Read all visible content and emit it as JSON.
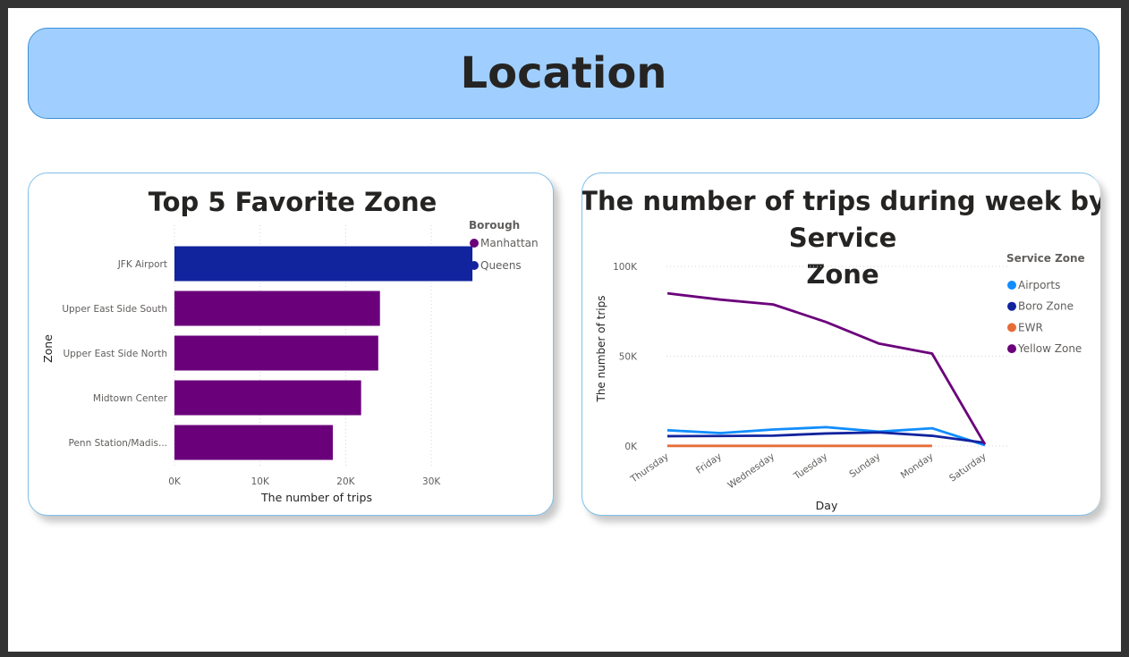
{
  "page": {
    "title": "Location"
  },
  "chart_data": [
    {
      "type": "bar",
      "orientation": "horizontal",
      "title": "Top 5 Favorite Zone",
      "xlabel": "The number of trips",
      "ylabel": "Zone",
      "categories": [
        "JFK Airport",
        "Upper East Side South",
        "Upper East Side North",
        "Midtown Center",
        "Penn Station/Madis..."
      ],
      "values": [
        34800,
        24000,
        23800,
        21800,
        18500
      ],
      "groups": [
        "Queens",
        "Manhattan",
        "Manhattan",
        "Manhattan",
        "Manhattan"
      ],
      "xlim": [
        0,
        35000
      ],
      "xticks": [
        0,
        10000,
        20000,
        30000
      ],
      "xtick_labels": [
        "0K",
        "10K",
        "20K",
        "30K"
      ],
      "grid": true,
      "legend": {
        "title": "Borough",
        "position": "top-right",
        "items": [
          {
            "name": "Manhattan",
            "color": "#6b007b"
          },
          {
            "name": "Queens",
            "color": "#12239e"
          }
        ]
      }
    },
    {
      "type": "line",
      "title": "The number of trips during week by Service Zone",
      "title_lines": [
        "The number of trips during week by",
        "Service",
        "Zone"
      ],
      "xlabel": "Day",
      "ylabel": "The number of trips",
      "categories": [
        "Thursday",
        "Friday",
        "Wednesday",
        "Tuesday",
        "Sunday",
        "Monday",
        "Saturday"
      ],
      "ylim": [
        0,
        100000
      ],
      "yticks": [
        0,
        50000,
        100000
      ],
      "ytick_labels": [
        "0K",
        "50K",
        "100K"
      ],
      "grid": true,
      "series": [
        {
          "name": "Airports",
          "color": "#118dff",
          "values": [
            8800,
            7200,
            9200,
            10500,
            8000,
            9900,
            500
          ]
        },
        {
          "name": "Boro Zone",
          "color": "#12239e",
          "values": [
            5500,
            5600,
            5800,
            7000,
            7600,
            5700,
            1800
          ]
        },
        {
          "name": "EWR",
          "color": "#e66c37",
          "values": [
            100,
            100,
            100,
            100,
            100,
            100,
            null
          ]
        },
        {
          "name": "Yellow Zone",
          "color": "#6b007b",
          "values": [
            85000,
            81500,
            78800,
            69000,
            57000,
            51500,
            900
          ]
        }
      ],
      "legend": {
        "title": "Service Zone",
        "position": "top-right"
      }
    }
  ]
}
